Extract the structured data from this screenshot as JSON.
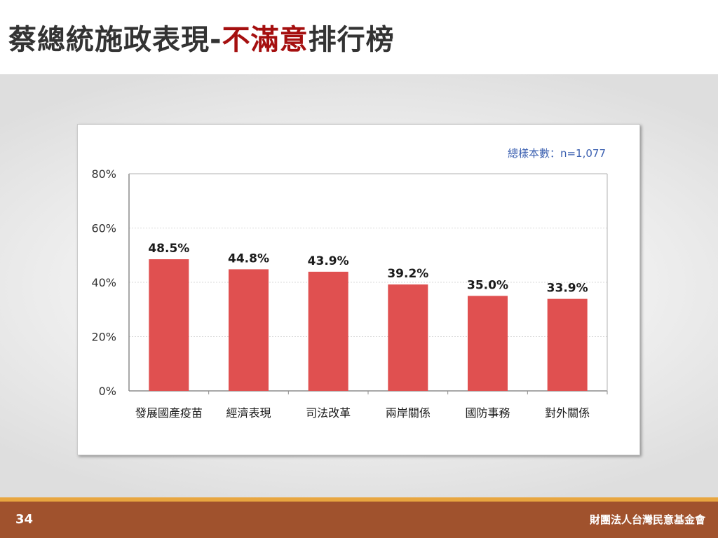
{
  "slide": {
    "title_prefix": "蔡總統施政表現-",
    "title_accent": "不滿意",
    "title_suffix": "排行榜",
    "page_number": "34",
    "organization": "財團法人台灣民意基金會"
  },
  "colors": {
    "bar": "#e05050",
    "accent": "#a50f0f",
    "sample_note": "#3a5fb0",
    "footer": "#a0522d",
    "footer_line": "#e8a640"
  },
  "chart_data": {
    "type": "bar",
    "sample_note": "總樣本數：n=1,077",
    "categories": [
      "發展國產疫苗",
      "經濟表現",
      "司法改革",
      "兩岸關係",
      "國防事務",
      "對外關係"
    ],
    "values": [
      48.5,
      44.8,
      43.9,
      39.2,
      35.0,
      33.9
    ],
    "value_labels": [
      "48.5%",
      "44.8%",
      "43.9%",
      "39.2%",
      "35.0%",
      "33.9%"
    ],
    "ylim": [
      0,
      80
    ],
    "yticks": [
      0,
      20,
      40,
      60,
      80
    ],
    "ytick_labels": [
      "0%",
      "20%",
      "40%",
      "60%",
      "80%"
    ],
    "grid": true,
    "legend": "none"
  }
}
